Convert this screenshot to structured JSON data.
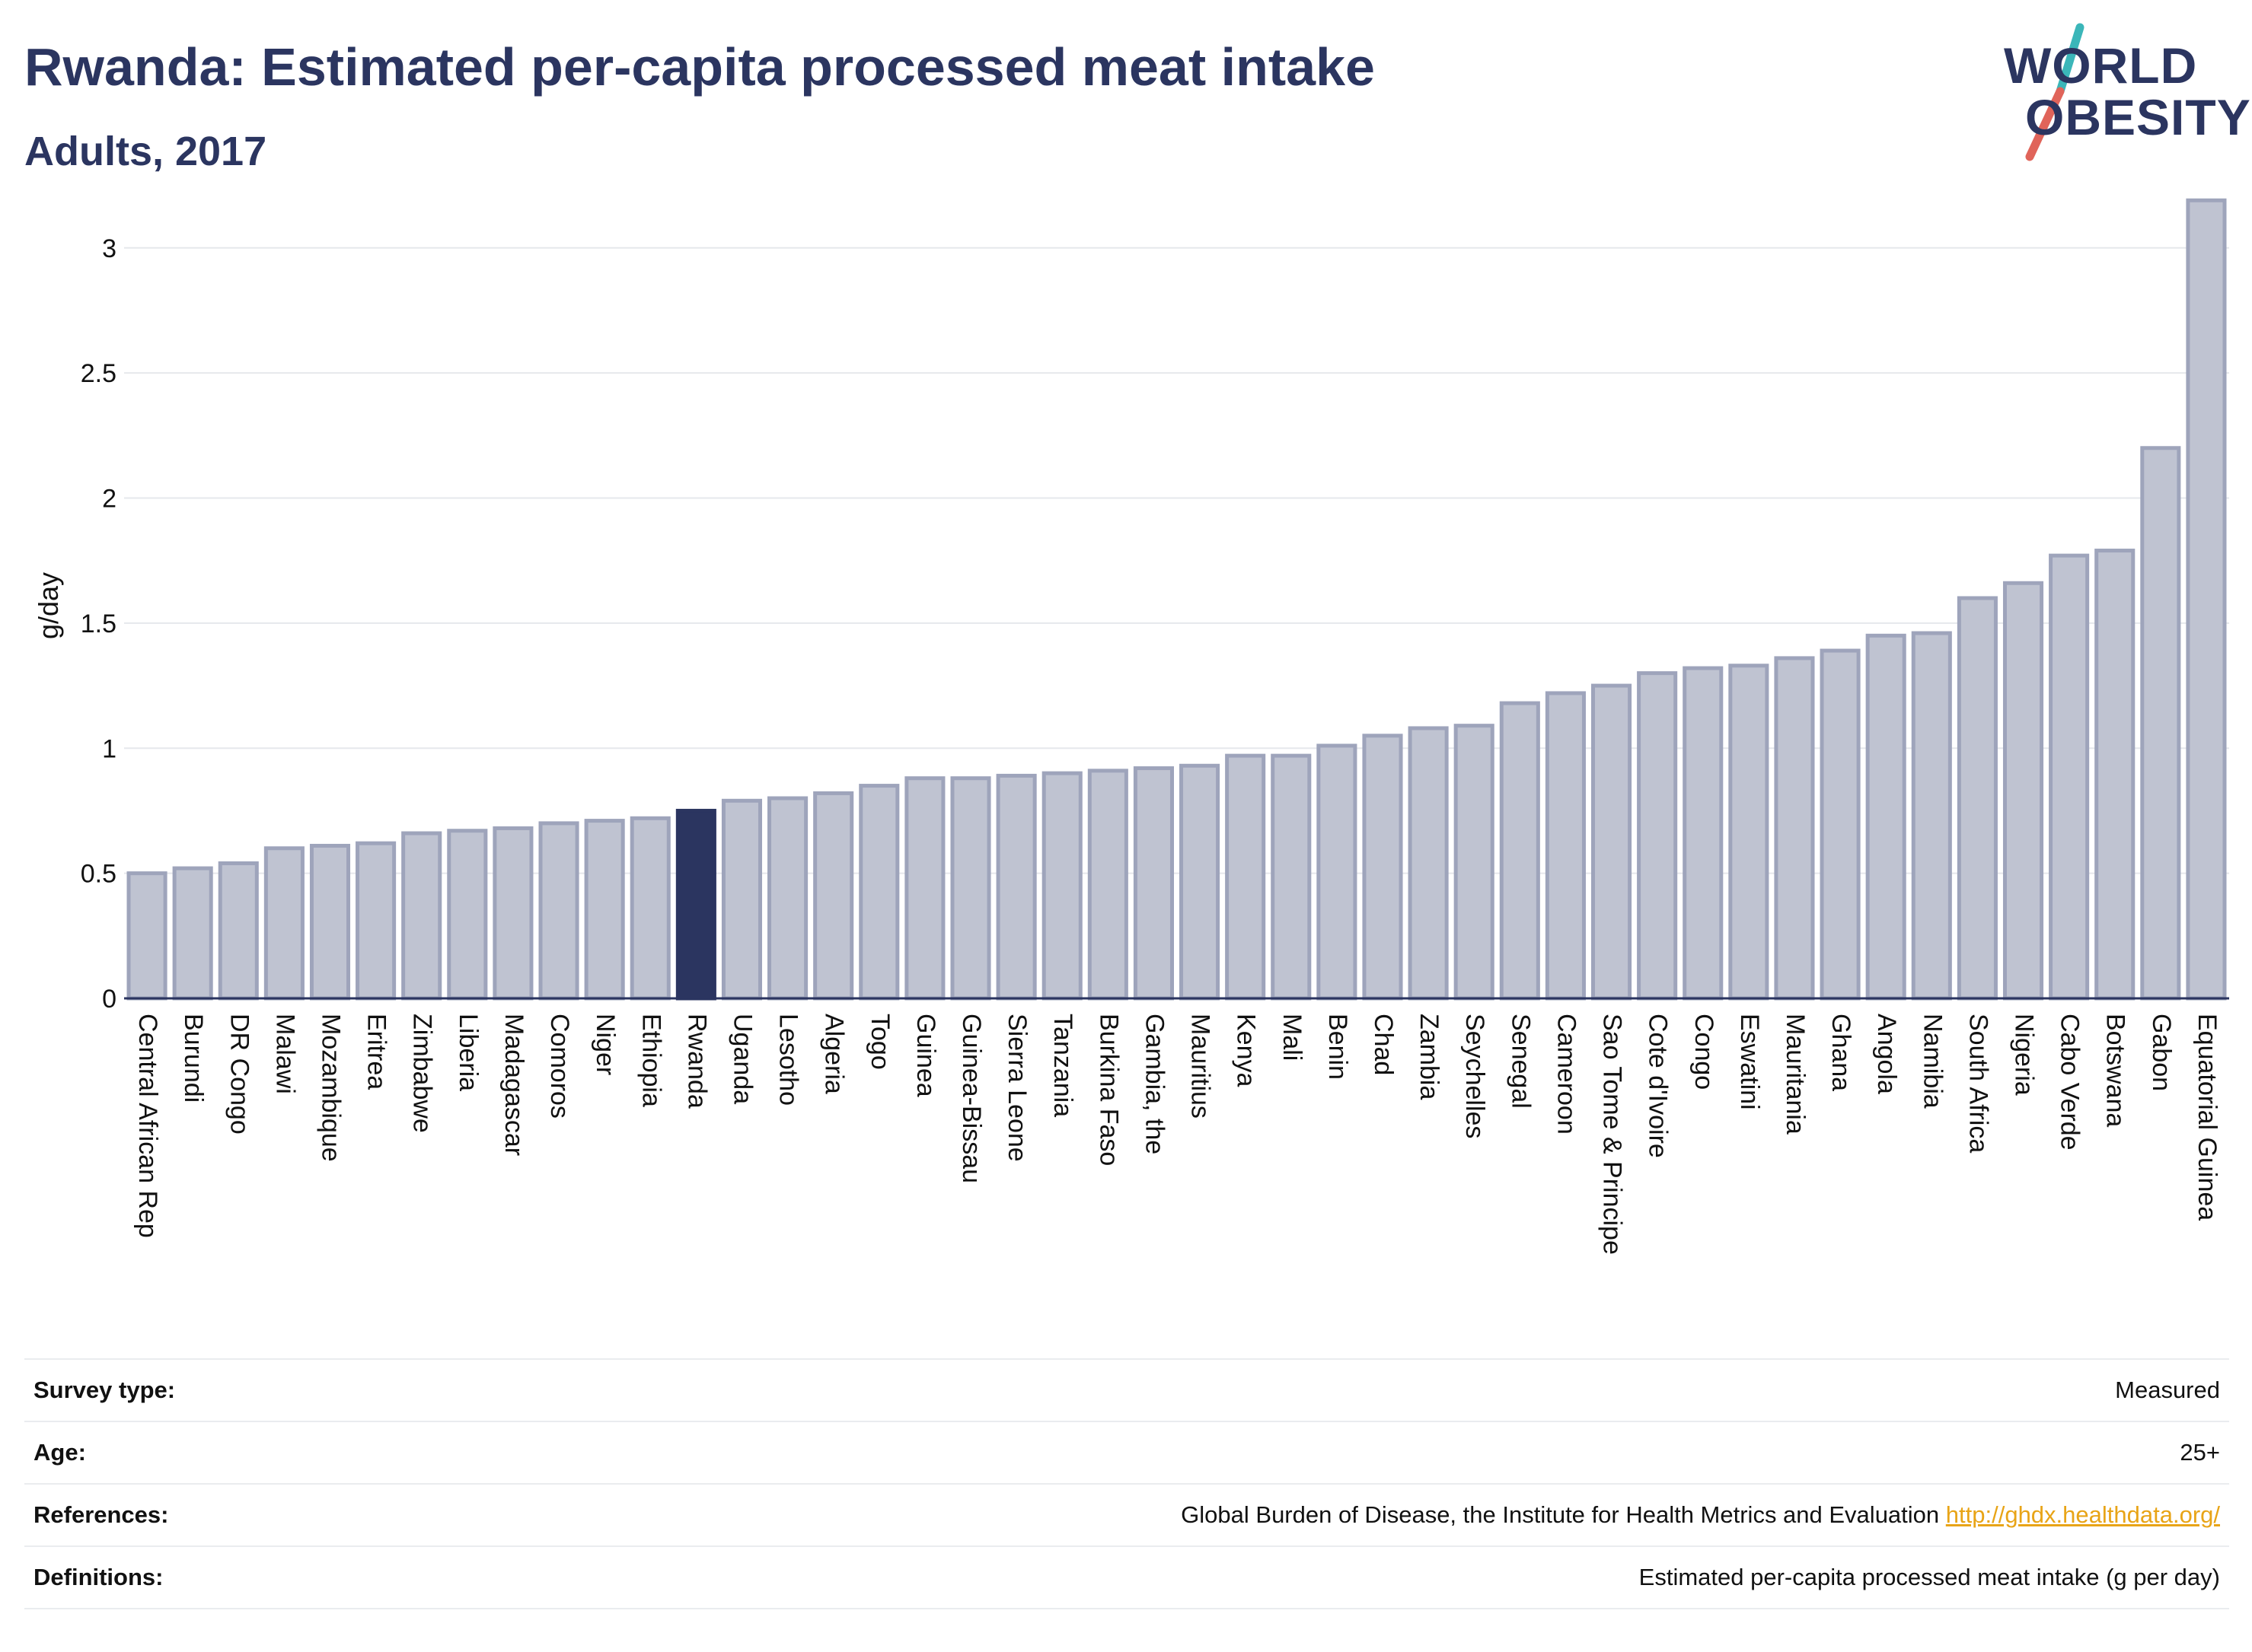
{
  "header": {
    "title": "Rwanda: Estimated per-capita processed meat intake",
    "subtitle": "Adults, 2017"
  },
  "logo": {
    "line1": "WORLD",
    "line2": "OBESITY",
    "icon": "world-obesity-logo"
  },
  "colors": {
    "bar_default": "#bfc3d1",
    "bar_border": "#9ea4bb",
    "bar_highlight": "#2b3560",
    "title": "#2b3560",
    "link": "#e8a417",
    "logo_slash_teal": "#3bb6b9",
    "logo_slash_red": "#e0645a"
  },
  "chart_data": {
    "type": "bar",
    "ylabel": "g/day",
    "ylim": [
      0,
      3.2
    ],
    "yticks": [
      "0",
      "0.5",
      "1",
      "1.5",
      "2",
      "2.5",
      "3"
    ],
    "grid": true,
    "highlight": "Rwanda",
    "categories": [
      "Central African Rep",
      "Burundi",
      "DR Congo",
      "Malawi",
      "Mozambique",
      "Eritrea",
      "Zimbabwe",
      "Liberia",
      "Madagascar",
      "Comoros",
      "Niger",
      "Ethiopia",
      "Rwanda",
      "Uganda",
      "Lesotho",
      "Algeria",
      "Togo",
      "Guinea",
      "Guinea-Bissau",
      "Sierra Leone",
      "Tanzania",
      "Burkina Faso",
      "Gambia, the",
      "Mauritius",
      "Kenya",
      "Mali",
      "Benin",
      "Chad",
      "Zambia",
      "Seychelles",
      "Senegal",
      "Cameroon",
      "Sao Tome & Principe",
      "Cote d'Ivoire",
      "Congo",
      "Eswatini",
      "Mauritania",
      "Ghana",
      "Angola",
      "Namibia",
      "South Africa",
      "Nigeria",
      "Cabo Verde",
      "Botswana",
      "Gabon",
      "Equatorial Guinea"
    ],
    "values": [
      0.5,
      0.52,
      0.54,
      0.6,
      0.61,
      0.62,
      0.66,
      0.67,
      0.68,
      0.7,
      0.71,
      0.72,
      0.75,
      0.79,
      0.8,
      0.82,
      0.85,
      0.88,
      0.88,
      0.89,
      0.9,
      0.91,
      0.92,
      0.93,
      0.97,
      0.97,
      1.01,
      1.05,
      1.08,
      1.09,
      1.18,
      1.22,
      1.25,
      1.3,
      1.32,
      1.33,
      1.36,
      1.39,
      1.45,
      1.46,
      1.6,
      1.66,
      1.77,
      1.79,
      2.2,
      3.19
    ]
  },
  "details": [
    {
      "label": "Survey type:",
      "value": "Measured"
    },
    {
      "label": "Age:",
      "value": "25+"
    },
    {
      "label": "References:",
      "value": "Global Burden of Disease, the Institute for Health Metrics and Evaluation",
      "link": "http://ghdx.healthdata.org/"
    },
    {
      "label": "Definitions:",
      "value": "Estimated per-capita processed meat intake (g per day)"
    }
  ]
}
